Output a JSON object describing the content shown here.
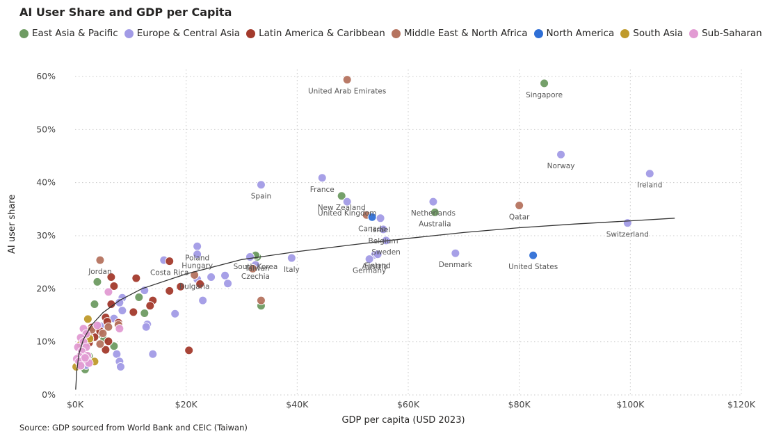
{
  "chart_data": {
    "type": "scatter",
    "title": "AI User Share and GDP per Capita",
    "xlabel": "GDP per capita (USD 2023)",
    "ylabel": "AI user share",
    "xlim": [
      0,
      120000
    ],
    "ylim": [
      0,
      0.6
    ],
    "x_ticks": [
      {
        "value": 0,
        "label": "$0K"
      },
      {
        "value": 20000,
        "label": "$20K"
      },
      {
        "value": 40000,
        "label": "$40K"
      },
      {
        "value": 60000,
        "label": "$60K"
      },
      {
        "value": 80000,
        "label": "$80K"
      },
      {
        "value": 100000,
        "label": "$100K"
      },
      {
        "value": 120000,
        "label": "$120K"
      }
    ],
    "y_ticks": [
      {
        "value": 0,
        "label": "0%"
      },
      {
        "value": 0.1,
        "label": "10%"
      },
      {
        "value": 0.2,
        "label": "20%"
      },
      {
        "value": 0.3,
        "label": "30%"
      },
      {
        "value": 0.4,
        "label": "40%"
      },
      {
        "value": 0.5,
        "label": "50%"
      },
      {
        "value": 0.6,
        "label": "60%"
      }
    ],
    "grid": true,
    "legend_position": "top",
    "source": "Source: GDP sourced from World Bank and CEIC (Taiwan)",
    "series": [
      {
        "name": "East Asia & Pacific",
        "color": "#6E9B62",
        "points": [
          {
            "x": 84500,
            "y": 0.587,
            "label": "Singapore"
          },
          {
            "x": 48000,
            "y": 0.375,
            "label": "New Zealand"
          },
          {
            "x": 64800,
            "y": 0.344,
            "label": "Australia"
          },
          {
            "x": 32800,
            "y": 0.26,
            "label": "Taiwan"
          },
          {
            "x": 32500,
            "y": 0.263,
            "label": "South Korea"
          },
          {
            "x": 33500,
            "y": 0.168
          },
          {
            "x": 11500,
            "y": 0.184
          },
          {
            "x": 12500,
            "y": 0.154
          },
          {
            "x": 4000,
            "y": 0.213
          },
          {
            "x": 3500,
            "y": 0.171
          },
          {
            "x": 7000,
            "y": 0.092
          },
          {
            "x": 2500,
            "y": 0.073
          },
          {
            "x": 1800,
            "y": 0.048
          },
          {
            "x": 4500,
            "y": 0.115
          },
          {
            "x": 5200,
            "y": 0.104
          },
          {
            "x": 1200,
            "y": 0.06
          }
        ]
      },
      {
        "name": "Europe & Central Asia",
        "color": "#A29BE6",
        "points": [
          {
            "x": 87500,
            "y": 0.453,
            "label": "Norway"
          },
          {
            "x": 103500,
            "y": 0.417,
            "label": "Ireland"
          },
          {
            "x": 99500,
            "y": 0.324,
            "label": "Switzerland"
          },
          {
            "x": 33500,
            "y": 0.396,
            "label": "Spain"
          },
          {
            "x": 44500,
            "y": 0.409,
            "label": "France"
          },
          {
            "x": 49000,
            "y": 0.364,
            "label": "United Kingdom"
          },
          {
            "x": 64500,
            "y": 0.364,
            "label": "Netherlands"
          },
          {
            "x": 55000,
            "y": 0.333,
            "label": "Israel"
          },
          {
            "x": 55500,
            "y": 0.312,
            "label": "Belgium"
          },
          {
            "x": 56000,
            "y": 0.291,
            "label": "Sweden"
          },
          {
            "x": 54000,
            "y": 0.264,
            "label": "Austria"
          },
          {
            "x": 53000,
            "y": 0.256,
            "label": "Germany"
          },
          {
            "x": 68500,
            "y": 0.267,
            "label": "Denmark"
          },
          {
            "x": 54500,
            "y": 0.265,
            "label": "Finland"
          },
          {
            "x": 39000,
            "y": 0.258,
            "label": "Italy"
          },
          {
            "x": 32500,
            "y": 0.245,
            "label": "Czechia"
          },
          {
            "x": 22000,
            "y": 0.28,
            "label": "Poland"
          },
          {
            "x": 22000,
            "y": 0.265,
            "label": "Hungary"
          },
          {
            "x": 16000,
            "y": 0.254
          },
          {
            "x": 31500,
            "y": 0.26
          },
          {
            "x": 27000,
            "y": 0.225
          },
          {
            "x": 27500,
            "y": 0.21
          },
          {
            "x": 24500,
            "y": 0.222
          },
          {
            "x": 22000,
            "y": 0.218
          },
          {
            "x": 23000,
            "y": 0.178
          },
          {
            "x": 18000,
            "y": 0.153
          },
          {
            "x": 12500,
            "y": 0.197
          },
          {
            "x": 13000,
            "y": 0.133
          },
          {
            "x": 12800,
            "y": 0.128
          },
          {
            "x": 14000,
            "y": 0.077
          },
          {
            "x": 8500,
            "y": 0.183
          },
          {
            "x": 8000,
            "y": 0.174
          },
          {
            "x": 8500,
            "y": 0.159
          },
          {
            "x": 7000,
            "y": 0.144
          },
          {
            "x": 7500,
            "y": 0.077
          },
          {
            "x": 8000,
            "y": 0.063
          },
          {
            "x": 8200,
            "y": 0.053
          },
          {
            "x": 6500,
            "y": 0.17
          },
          {
            "x": 4500,
            "y": 0.13
          },
          {
            "x": 2500,
            "y": 0.062
          },
          {
            "x": 2000,
            "y": 0.056
          }
        ]
      },
      {
        "name": "Latin America & Caribbean",
        "color": "#A33A2C",
        "points": [
          {
            "x": 17000,
            "y": 0.252,
            "label": "Costa Rica"
          },
          {
            "x": 22500,
            "y": 0.209
          },
          {
            "x": 19000,
            "y": 0.204
          },
          {
            "x": 17000,
            "y": 0.196
          },
          {
            "x": 14000,
            "y": 0.178
          },
          {
            "x": 13500,
            "y": 0.168
          },
          {
            "x": 11000,
            "y": 0.22
          },
          {
            "x": 10500,
            "y": 0.156
          },
          {
            "x": 6500,
            "y": 0.222
          },
          {
            "x": 7000,
            "y": 0.205
          },
          {
            "x": 6500,
            "y": 0.171
          },
          {
            "x": 5500,
            "y": 0.146
          },
          {
            "x": 5800,
            "y": 0.138
          },
          {
            "x": 7800,
            "y": 0.136
          },
          {
            "x": 4500,
            "y": 0.12
          },
          {
            "x": 3000,
            "y": 0.127
          },
          {
            "x": 3500,
            "y": 0.109
          },
          {
            "x": 6000,
            "y": 0.101
          },
          {
            "x": 5500,
            "y": 0.085
          },
          {
            "x": 2500,
            "y": 0.098
          },
          {
            "x": 20500,
            "y": 0.084
          }
        ]
      },
      {
        "name": "Middle East & North Africa",
        "color": "#B5735F",
        "points": [
          {
            "x": 49000,
            "y": 0.594,
            "label": "United Arab Emirates"
          },
          {
            "x": 80000,
            "y": 0.357,
            "label": "Qatar"
          },
          {
            "x": 52500,
            "y": 0.339
          },
          {
            "x": 4500,
            "y": 0.254,
            "label": "Jordan"
          },
          {
            "x": 21500,
            "y": 0.226,
            "label": "Bulgaria"
          },
          {
            "x": 32000,
            "y": 0.238
          },
          {
            "x": 33500,
            "y": 0.178
          },
          {
            "x": 6000,
            "y": 0.128
          },
          {
            "x": 7800,
            "y": 0.132
          },
          {
            "x": 5000,
            "y": 0.116
          },
          {
            "x": 4500,
            "y": 0.096
          },
          {
            "x": 2500,
            "y": 0.11
          },
          {
            "x": 3000,
            "y": 0.123
          }
        ]
      },
      {
        "name": "North America",
        "color": "#2F6FD6",
        "points": [
          {
            "x": 82500,
            "y": 0.263,
            "label": "United States"
          },
          {
            "x": 53500,
            "y": 0.335,
            "label": "Canada"
          }
        ]
      },
      {
        "name": "South Asia",
        "color": "#BF9A2B",
        "points": [
          {
            "x": 2300,
            "y": 0.143
          },
          {
            "x": 2600,
            "y": 0.106
          },
          {
            "x": 3500,
            "y": 0.063
          },
          {
            "x": 1000,
            "y": 0.095
          },
          {
            "x": 200,
            "y": 0.053
          }
        ]
      },
      {
        "name": "Sub-Saharan Africa",
        "color": "#E29BD3",
        "points": [
          {
            "x": 6000,
            "y": 0.194
          },
          {
            "x": 4000,
            "y": 0.131
          },
          {
            "x": 8000,
            "y": 0.125
          },
          {
            "x": 1500,
            "y": 0.125
          },
          {
            "x": 2000,
            "y": 0.115
          },
          {
            "x": 1000,
            "y": 0.108
          },
          {
            "x": 1500,
            "y": 0.1
          },
          {
            "x": 2000,
            "y": 0.09
          },
          {
            "x": 500,
            "y": 0.09
          },
          {
            "x": 1200,
            "y": 0.082
          },
          {
            "x": 2200,
            "y": 0.074
          },
          {
            "x": 800,
            "y": 0.072
          },
          {
            "x": 300,
            "y": 0.068
          },
          {
            "x": 1500,
            "y": 0.066
          },
          {
            "x": 700,
            "y": 0.063
          },
          {
            "x": 2500,
            "y": 0.06
          },
          {
            "x": 1000,
            "y": 0.055
          },
          {
            "x": 1800,
            "y": 0.07
          }
        ]
      }
    ],
    "trendline": {
      "type": "logarithmic",
      "points": [
        {
          "x": 100,
          "y": 0.01
        },
        {
          "x": 300,
          "y": 0.045
        },
        {
          "x": 700,
          "y": 0.078
        },
        {
          "x": 1500,
          "y": 0.105
        },
        {
          "x": 3000,
          "y": 0.132
        },
        {
          "x": 5000,
          "y": 0.155
        },
        {
          "x": 8000,
          "y": 0.178
        },
        {
          "x": 12000,
          "y": 0.2
        },
        {
          "x": 20000,
          "y": 0.228
        },
        {
          "x": 30000,
          "y": 0.255
        },
        {
          "x": 40000,
          "y": 0.27
        },
        {
          "x": 50000,
          "y": 0.283
        },
        {
          "x": 60000,
          "y": 0.295
        },
        {
          "x": 70000,
          "y": 0.306
        },
        {
          "x": 80000,
          "y": 0.315
        },
        {
          "x": 90000,
          "y": 0.322
        },
        {
          "x": 100000,
          "y": 0.328
        },
        {
          "x": 108000,
          "y": 0.333
        }
      ]
    }
  }
}
